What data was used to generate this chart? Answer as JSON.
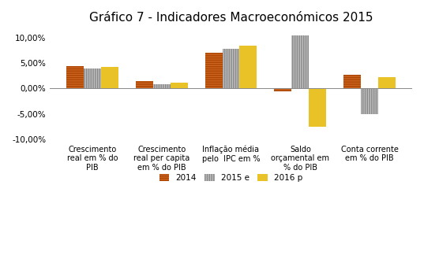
{
  "title": "Gráfico 7 - Indicadores Macroeconómicos 2015",
  "categories": [
    "Crescimento\nreal em % do\nPIB",
    "Crescimento\nreal per capita\nem % do PIB",
    "Inflação média\npelo  IPC em %",
    "Saldo\norçamental em\n% do PIB",
    "Conta corrente\nem % do PIB"
  ],
  "series": {
    "2014": [
      4.5,
      1.5,
      7.0,
      -0.5,
      2.7
    ],
    "2015 e": [
      4.0,
      0.9,
      7.8,
      10.5,
      -5.0
    ],
    "2016 p": [
      4.2,
      1.2,
      8.5,
      -7.5,
      2.2
    ]
  },
  "colors": {
    "2014": "#cc6622",
    "2015 e": "#c0c0c0",
    "2016 p": "#e8c227"
  },
  "hatches": {
    "2014": "------",
    "2015 e": "||||||",
    "2016 p": "======"
  },
  "hatch_colors": {
    "2014": "#aa4400",
    "2015 e": "#888888",
    "2016 p": "#b89000"
  },
  "ylim": [
    -10.5,
    12.0
  ],
  "yticks": [
    -10.0,
    -5.0,
    0.0,
    5.0,
    10.0
  ],
  "ytick_labels": [
    "-10,00%",
    "-5,00%",
    "0,00%",
    "5,00%",
    "10,00%"
  ],
  "bar_width": 0.25,
  "background_color": "#ffffff",
  "title_fontsize": 11,
  "tick_fontsize": 7.5,
  "label_fontsize": 7.0
}
